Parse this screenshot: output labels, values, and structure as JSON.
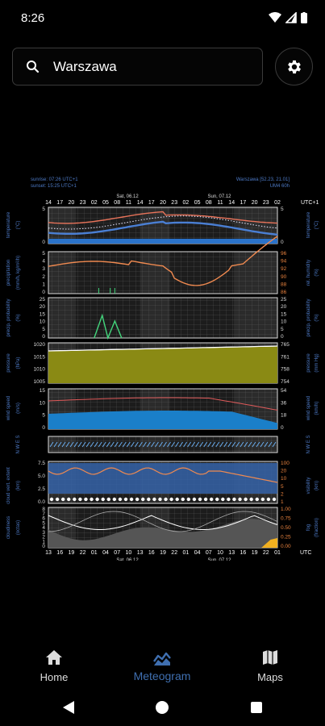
{
  "status_bar": {
    "time": "8:26"
  },
  "search": {
    "value": "Warszawa"
  },
  "meteogram": {
    "sunrise": "sunrise: 07:26 UTC+1",
    "sunset": "sunset: 15:25 UTC+1",
    "location": "Warszawa [52.23, 21.01]",
    "model": "UM4 60h",
    "top_hours": [
      "14",
      "17",
      "20",
      "23",
      "02",
      "05",
      "08",
      "11",
      "14",
      "17",
      "20",
      "23",
      "02",
      "05",
      "08",
      "11",
      "14",
      "17",
      "20",
      "23",
      "02"
    ],
    "top_tz": "UTC+1",
    "bottom_hours": [
      "13",
      "16",
      "19",
      "22",
      "01",
      "04",
      "07",
      "10",
      "13",
      "16",
      "19",
      "22",
      "01",
      "04",
      "07",
      "10",
      "13",
      "16",
      "19",
      "22",
      "01"
    ],
    "bottom_tz": "UTC",
    "day1": "Sat, 06.12",
    "day2": "Sun, 07.12",
    "panels": {
      "temperature": {
        "left_label": "temperature",
        "left_unit": "(°C)",
        "right_label": "temperature",
        "right_unit": "(°C)",
        "left_ticks": [
          "5",
          "0"
        ],
        "right_ticks": [
          "5",
          "0"
        ]
      },
      "precipitation": {
        "left_label": "precipitation",
        "left_unit": "(mm/h, kg/m²/h)",
        "right_label": "rel. humidity",
        "right_unit": "(%)",
        "left_ticks": [
          "5",
          "4",
          "3",
          "2",
          "1",
          "0"
        ],
        "right_ticks": [
          "96",
          "94",
          "92",
          "90",
          "88",
          "86"
        ]
      },
      "probability": {
        "left_label": "precip. probability",
        "left_unit": "(%)",
        "right_label": "precip. probability",
        "right_unit": "(%)",
        "left_ticks": [
          "25",
          "20",
          "15",
          "10",
          "5",
          "0"
        ],
        "right_ticks": [
          "25",
          "20",
          "15",
          "10",
          "5",
          "0"
        ]
      },
      "pressure": {
        "left_label": "pressure",
        "left_unit": "(hPa)",
        "right_label": "pressure",
        "right_unit": "(mm Hg)",
        "left_ticks": [
          "1020",
          "1015",
          "1010",
          "1005"
        ],
        "right_ticks": [
          "765",
          "761",
          "758",
          "754"
        ]
      },
      "wind": {
        "left_label": "wind speed",
        "left_unit": "(m/s)",
        "right_label": "wind speed",
        "right_unit": "(km/h)",
        "left_ticks": [
          "15",
          "10",
          "5",
          "0"
        ],
        "right_ticks": [
          "54",
          "36",
          "18",
          "0"
        ]
      },
      "direction": {
        "left_label": "N W E S",
        "right_label": "N W E S"
      },
      "cloud_extent": {
        "left_label": "cloud vert. extent",
        "left_unit": "(km)",
        "right_label": "visibility",
        "right_unit": "(km)",
        "left_ticks": [
          "7.5",
          "5.0",
          "2.5",
          "0.0"
        ],
        "right_ticks": [
          "100",
          "20",
          "10",
          "5",
          "2",
          "1"
        ]
      },
      "cloudiness": {
        "left_label": "cloudiness",
        "left_unit": "(octas)",
        "right_label": "fog",
        "right_unit": "(fraction)",
        "left_ticks": [
          "8",
          "7",
          "6",
          "5",
          "4",
          "3",
          "2",
          "1",
          "0"
        ],
        "right_ticks": [
          "1.00",
          "0.75",
          "0.50",
          "0.25",
          "0.00"
        ]
      }
    },
    "colors": {
      "temperature_max": "#e8735a",
      "temperature_min": "#4a7fd4",
      "humidity": "#f08a50",
      "precip_prob": "#43d67c",
      "pressure_fill": "#8a8a14",
      "wind": "#1a7fc9",
      "gust": "#e05a5a",
      "axis_label": "#4d7ac6",
      "right_orange": "#e8823e"
    }
  },
  "nav": {
    "home": "Home",
    "meteogram": "Meteogram",
    "maps": "Maps"
  }
}
